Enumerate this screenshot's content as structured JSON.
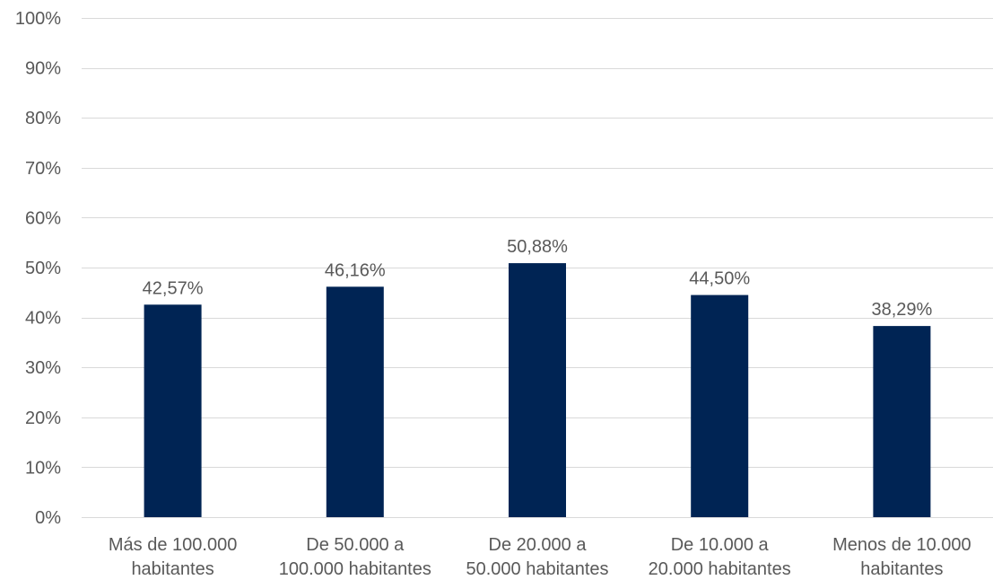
{
  "chart_data": {
    "type": "bar",
    "title": "",
    "xlabel": "",
    "ylabel": "",
    "categories": [
      [
        "Más de 100.000",
        "habitantes"
      ],
      [
        "De 50.000 a",
        "100.000 habitantes"
      ],
      [
        "De 20.000 a",
        "50.000 habitantes"
      ],
      [
        "De 10.000 a",
        "20.000 habitantes"
      ],
      [
        "Menos de 10.000",
        "habitantes"
      ]
    ],
    "values": [
      42.57,
      46.16,
      50.88,
      44.5,
      38.29
    ],
    "value_labels": [
      "42,57%",
      "46,16%",
      "50,88%",
      "44,50%",
      "38,29%"
    ],
    "ylim": [
      0,
      100
    ],
    "yticks": [
      0,
      10,
      20,
      30,
      40,
      50,
      60,
      70,
      80,
      90,
      100
    ],
    "ytick_labels": [
      "0%",
      "10%",
      "20%",
      "30%",
      "40%",
      "50%",
      "60%",
      "70%",
      "80%",
      "90%",
      "100%"
    ],
    "grid": true,
    "legend": "none",
    "bar_color": "#002454",
    "grid_color": "#d9d9d9",
    "text_color": "#595959"
  }
}
